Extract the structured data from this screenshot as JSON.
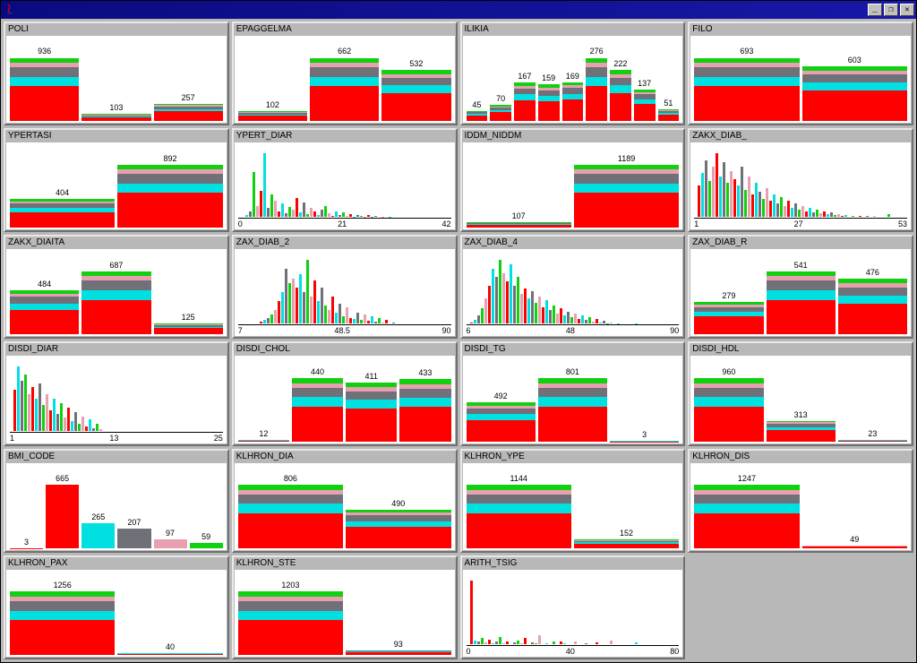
{
  "window": {
    "title": "",
    "icon": "java-icon"
  },
  "colors": {
    "bg_grey": "#b8b8b8",
    "stack": [
      "#ff0000",
      "#00e0e0",
      "#707078",
      "#e8a0b0",
      "#10d010"
    ],
    "solid_palette": [
      "#ff0000",
      "#00e0e0",
      "#707078",
      "#e8a0b0",
      "#10d010",
      "#ff0000"
    ]
  },
  "panels": [
    {
      "title": "POLI",
      "type": "stacked",
      "max": 936,
      "bars": [
        {
          "label": "936",
          "v": 936
        },
        {
          "label": "103",
          "v": 103
        },
        {
          "label": "257",
          "v": 257
        }
      ]
    },
    {
      "title": "EPAGGELMA",
      "type": "stacked",
      "max": 662,
      "bars": [
        {
          "label": "102",
          "v": 102
        },
        {
          "label": "662",
          "v": 662
        },
        {
          "label": "532",
          "v": 532
        }
      ]
    },
    {
      "title": "ILIKIA",
      "type": "stacked",
      "max": 276,
      "bars": [
        {
          "label": "45",
          "v": 45
        },
        {
          "label": "70",
          "v": 70
        },
        {
          "label": "167",
          "v": 167
        },
        {
          "label": "159",
          "v": 159
        },
        {
          "label": "169",
          "v": 169
        },
        {
          "label": "276",
          "v": 276
        },
        {
          "label": "222",
          "v": 222
        },
        {
          "label": "137",
          "v": 137
        },
        {
          "label": "51",
          "v": 51
        }
      ]
    },
    {
      "title": "FILO",
      "type": "stacked",
      "max": 693,
      "bars": [
        {
          "label": "693",
          "v": 693
        },
        {
          "label": "603",
          "v": 603
        }
      ]
    },
    {
      "title": "YPERTASI",
      "type": "stacked",
      "max": 892,
      "bars": [
        {
          "label": "404",
          "v": 404
        },
        {
          "label": "892",
          "v": 892
        }
      ]
    },
    {
      "title": "YPERT_DIAR",
      "type": "spikes",
      "axis": [
        "0",
        "21",
        "42"
      ],
      "spikes": [
        0,
        3,
        8,
        60,
        15,
        35,
        85,
        12,
        30,
        22,
        8,
        18,
        5,
        14,
        10,
        25,
        6,
        20,
        4,
        12,
        8,
        3,
        10,
        15,
        5,
        2,
        8,
        3,
        6,
        2,
        4,
        1,
        3,
        2,
        1,
        3,
        1,
        2,
        0,
        1,
        0,
        1
      ]
    },
    {
      "title": "IDDM_NIDDM",
      "type": "stacked",
      "max": 1189,
      "bars": [
        {
          "label": "107",
          "v": 107
        },
        {
          "label": "1189",
          "v": 1189
        }
      ]
    },
    {
      "title": "ZAKX_DIAB_",
      "type": "spikes",
      "axis": [
        "1",
        "27",
        "53"
      ],
      "spikes": [
        35,
        48,
        62,
        40,
        55,
        70,
        45,
        60,
        38,
        50,
        42,
        35,
        55,
        30,
        45,
        25,
        38,
        28,
        20,
        32,
        18,
        25,
        15,
        22,
        12,
        18,
        10,
        15,
        8,
        12,
        6,
        10,
        5,
        8,
        4,
        6,
        3,
        5,
        2,
        3,
        1,
        2,
        0,
        1,
        0,
        1,
        0,
        1,
        0,
        1,
        0,
        0,
        0,
        3
      ]
    },
    {
      "title": "ZAKX_DIAITA",
      "type": "stacked",
      "max": 687,
      "bars": [
        {
          "label": "484",
          "v": 484
        },
        {
          "label": "687",
          "v": 687
        },
        {
          "label": "125",
          "v": 125
        }
      ]
    },
    {
      "title": "ZAX_DIAB_2",
      "type": "spikes",
      "axis": [
        "7",
        "48.5",
        "90"
      ],
      "spikes": [
        0,
        0,
        0,
        0,
        0,
        2,
        4,
        6,
        10,
        15,
        25,
        35,
        60,
        45,
        50,
        40,
        55,
        35,
        70,
        30,
        48,
        25,
        40,
        20,
        15,
        30,
        12,
        22,
        8,
        18,
        6,
        5,
        12,
        4,
        10,
        3,
        8,
        2,
        6,
        1,
        4,
        0,
        1,
        0,
        0,
        0,
        0,
        0
      ]
    },
    {
      "title": "ZAX_DIAB_4",
      "type": "spikes",
      "axis": [
        "6",
        "48",
        "90"
      ],
      "spikes": [
        2,
        5,
        10,
        18,
        30,
        45,
        65,
        55,
        75,
        60,
        50,
        70,
        45,
        55,
        35,
        42,
        30,
        38,
        25,
        32,
        20,
        28,
        16,
        22,
        12,
        18,
        10,
        14,
        8,
        12,
        6,
        10,
        5,
        8,
        3,
        6,
        2,
        4,
        1,
        2,
        0,
        1,
        0,
        0,
        0,
        0,
        1,
        0
      ]
    },
    {
      "title": "ZAX_DIAB_R",
      "type": "stacked",
      "max": 541,
      "bars": [
        {
          "label": "279",
          "v": 279
        },
        {
          "label": "541",
          "v": 541
        },
        {
          "label": "476",
          "v": 476
        }
      ]
    },
    {
      "title": "DISDI_DIAR",
      "type": "spikes",
      "axis": [
        "1",
        "13",
        "25"
      ],
      "spikes": [
        45,
        70,
        55,
        62,
        40,
        48,
        35,
        52,
        28,
        40,
        22,
        35,
        18,
        30,
        14,
        25,
        10,
        20,
        8,
        15,
        5,
        12,
        3,
        8,
        2
      ]
    },
    {
      "title": "DISDI_CHOL",
      "type": "stacked",
      "max": 440,
      "bars": [
        {
          "label": "12",
          "v": 12
        },
        {
          "label": "440",
          "v": 440
        },
        {
          "label": "411",
          "v": 411
        },
        {
          "label": "433",
          "v": 433
        }
      ]
    },
    {
      "title": "DISDI_TG",
      "type": "stacked",
      "max": 801,
      "bars": [
        {
          "label": "492",
          "v": 492
        },
        {
          "label": "801",
          "v": 801
        },
        {
          "label": "3",
          "v": 3
        }
      ]
    },
    {
      "title": "DISDI_HDL",
      "type": "stacked",
      "max": 960,
      "bars": [
        {
          "label": "960",
          "v": 960
        },
        {
          "label": "313",
          "v": 313
        },
        {
          "label": "23",
          "v": 23
        }
      ]
    },
    {
      "title": "BMI_CODE",
      "type": "solid",
      "max": 665,
      "colors": [
        "#ff0000",
        "#ff0000",
        "#00e0e0",
        "#707078",
        "#e8a0b0",
        "#10d010"
      ],
      "bars": [
        {
          "label": "3",
          "v": 3
        },
        {
          "label": "665",
          "v": 665
        },
        {
          "label": "265",
          "v": 265
        },
        {
          "label": "207",
          "v": 207
        },
        {
          "label": "97",
          "v": 97
        },
        {
          "label": "59",
          "v": 59
        }
      ]
    },
    {
      "title": "KLHRON_DIA",
      "type": "stacked",
      "max": 806,
      "bars": [
        {
          "label": "806",
          "v": 806
        },
        {
          "label": "490",
          "v": 490
        }
      ]
    },
    {
      "title": "KLHRON_YPE",
      "type": "stacked",
      "max": 1144,
      "bars": [
        {
          "label": "1144",
          "v": 1144
        },
        {
          "label": "152",
          "v": 152
        }
      ]
    },
    {
      "title": "KLHRON_DIS",
      "type": "stacked",
      "max": 1247,
      "bars": [
        {
          "label": "1247",
          "v": 1247
        },
        {
          "label": "49",
          "v": 49
        }
      ]
    },
    {
      "title": "KLHRON_PAX",
      "type": "stacked",
      "max": 1256,
      "bars": [
        {
          "label": "1256",
          "v": 1256
        },
        {
          "label": "40",
          "v": 40
        }
      ]
    },
    {
      "title": "KLHRON_STE",
      "type": "stacked",
      "max": 1203,
      "bars": [
        {
          "label": "1203",
          "v": 1203
        },
        {
          "label": "93",
          "v": 93
        }
      ]
    },
    {
      "title": "ARITH_TSIG",
      "type": "spikes",
      "axis": [
        "0",
        "40",
        "80"
      ],
      "spikes": [
        85,
        5,
        3,
        8,
        2,
        6,
        1,
        4,
        10,
        1,
        3,
        0,
        2,
        5,
        1,
        8,
        0,
        2,
        1,
        12,
        0,
        1,
        0,
        3,
        0,
        3,
        1,
        0,
        0,
        4,
        0,
        0,
        1,
        0,
        0,
        2,
        0,
        0,
        0,
        5,
        0,
        0,
        0,
        0,
        0,
        0,
        2,
        0,
        0,
        0
      ]
    }
  ],
  "stack_proportions": [
    0.55,
    0.15,
    0.15,
    0.07,
    0.08
  ]
}
